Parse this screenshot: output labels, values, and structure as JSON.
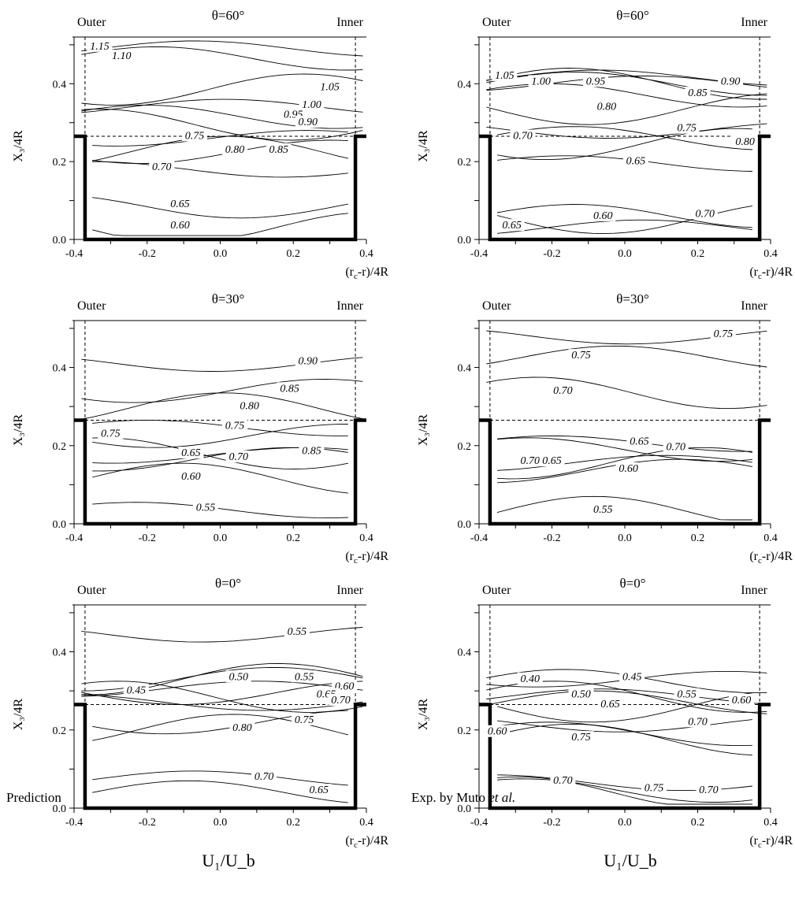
{
  "captions": {
    "left": "Prediction",
    "right_prefix": "Exp. by  Muto ",
    "right_italic": "et al.",
    "left_quantity": "U₁/U_b",
    "right_quantity": "U₁/U_b"
  },
  "chart_data": [
    {
      "type": "contour",
      "title": "θ=60°",
      "side_left": "Outer",
      "side_right": "Inner",
      "xlabel": "(r_c-r)/4R",
      "ylabel": "X₃/4R",
      "xlim": [
        -0.4,
        0.4
      ],
      "ylim": [
        0,
        0.52
      ],
      "xticks": [
        "-0.4",
        "-0.2",
        "0.0",
        "0.2",
        "0.4"
      ],
      "yticks": [
        "0.0",
        "0.2",
        "0.4"
      ],
      "channel": {
        "x": [
          -0.37,
          0.37
        ],
        "top": 0.265
      },
      "contour_labels": [
        {
          "text": "1.15",
          "x": -0.33,
          "y": 0.49
        },
        {
          "text": "1.10",
          "x": -0.27,
          "y": 0.465
        },
        {
          "text": "1.05",
          "x": 0.3,
          "y": 0.385
        },
        {
          "text": "1.00",
          "x": 0.25,
          "y": 0.34
        },
        {
          "text": "0.95",
          "x": 0.2,
          "y": 0.315
        },
        {
          "text": "0.90",
          "x": 0.24,
          "y": 0.295
        },
        {
          "text": "0.85",
          "x": 0.16,
          "y": 0.225
        },
        {
          "text": "0.80",
          "x": 0.04,
          "y": 0.225
        },
        {
          "text": "0.75",
          "x": -0.07,
          "y": 0.26
        },
        {
          "text": "0.70",
          "x": -0.16,
          "y": 0.18
        },
        {
          "text": "0.65",
          "x": -0.11,
          "y": 0.085
        },
        {
          "text": "0.60",
          "x": -0.11,
          "y": 0.03
        }
      ]
    },
    {
      "type": "contour",
      "title": "θ=60°",
      "side_left": "Outer",
      "side_right": "Inner",
      "xlabel": "(r_c-r)/4R",
      "ylabel": "X₃/4R",
      "xlim": [
        -0.4,
        0.4
      ],
      "ylim": [
        0,
        0.52
      ],
      "xticks": [
        "-0.4",
        "-0.2",
        "0.0",
        "0.2",
        "0.4"
      ],
      "yticks": [
        "0.0",
        "0.2",
        "0.4"
      ],
      "channel": {
        "x": [
          -0.37,
          0.37
        ],
        "top": 0.265
      },
      "contour_labels": [
        {
          "text": "1.05",
          "x": -0.33,
          "y": 0.415
        },
        {
          "text": "1.00",
          "x": -0.23,
          "y": 0.4
        },
        {
          "text": "0.95",
          "x": -0.08,
          "y": 0.4
        },
        {
          "text": "0.90",
          "x": 0.29,
          "y": 0.4
        },
        {
          "text": "0.85",
          "x": 0.2,
          "y": 0.37
        },
        {
          "text": "0.80",
          "x": -0.05,
          "y": 0.335
        },
        {
          "text": "0.75",
          "x": 0.17,
          "y": 0.28
        },
        {
          "text": "0.80",
          "x": 0.33,
          "y": 0.245
        },
        {
          "text": "0.70",
          "x": -0.28,
          "y": 0.26
        },
        {
          "text": "0.65",
          "x": 0.03,
          "y": 0.195
        },
        {
          "text": "0.60",
          "x": -0.06,
          "y": 0.055
        },
        {
          "text": "0.65",
          "x": -0.31,
          "y": 0.03
        },
        {
          "text": "0.70",
          "x": 0.22,
          "y": 0.06
        }
      ]
    },
    {
      "type": "contour",
      "title": "θ=30°",
      "side_left": "Outer",
      "side_right": "Inner",
      "xlabel": "(r_c-r)/4R",
      "ylabel": "X₃/4R",
      "xlim": [
        -0.4,
        0.4
      ],
      "ylim": [
        0,
        0.52
      ],
      "xticks": [
        "-0.4",
        "-0.2",
        "0.0",
        "0.2",
        "0.4"
      ],
      "yticks": [
        "0.0",
        "0.2",
        "0.4"
      ],
      "channel": {
        "x": [
          -0.37,
          0.37
        ],
        "top": 0.265
      },
      "contour_labels": [
        {
          "text": "0.90",
          "x": 0.24,
          "y": 0.41
        },
        {
          "text": "0.85",
          "x": 0.19,
          "y": 0.34
        },
        {
          "text": "0.80",
          "x": 0.08,
          "y": 0.295
        },
        {
          "text": "0.75",
          "x": 0.04,
          "y": 0.245
        },
        {
          "text": "0.75",
          "x": -0.3,
          "y": 0.225
        },
        {
          "text": "0.85",
          "x": 0.25,
          "y": 0.18
        },
        {
          "text": "0.70",
          "x": 0.05,
          "y": 0.165
        },
        {
          "text": "0.65",
          "x": -0.08,
          "y": 0.175
        },
        {
          "text": "0.60",
          "x": -0.08,
          "y": 0.115
        },
        {
          "text": "0.55",
          "x": -0.04,
          "y": 0.035
        }
      ]
    },
    {
      "type": "contour",
      "title": "θ=30°",
      "side_left": "Outer",
      "side_right": "Inner",
      "xlabel": "(r_c-r)/4R",
      "ylabel": "X₃/4R",
      "xlim": [
        -0.4,
        0.4
      ],
      "ylim": [
        0,
        0.52
      ],
      "xticks": [
        "-0.4",
        "-0.2",
        "0.0",
        "0.2",
        "0.4"
      ],
      "yticks": [
        "0.0",
        "0.2",
        "0.4"
      ],
      "channel": {
        "x": [
          -0.37,
          0.37
        ],
        "top": 0.265
      },
      "contour_labels": [
        {
          "text": "0.75",
          "x": 0.27,
          "y": 0.48
        },
        {
          "text": "0.75",
          "x": -0.12,
          "y": 0.425
        },
        {
          "text": "0.70",
          "x": -0.17,
          "y": 0.335
        },
        {
          "text": "0.65",
          "x": 0.04,
          "y": 0.205
        },
        {
          "text": "0.70",
          "x": 0.14,
          "y": 0.19
        },
        {
          "text": "0.70",
          "x": -0.26,
          "y": 0.155
        },
        {
          "text": "0.65",
          "x": -0.2,
          "y": 0.155
        },
        {
          "text": "0.60",
          "x": 0.01,
          "y": 0.135
        },
        {
          "text": "0.55",
          "x": -0.06,
          "y": 0.03
        }
      ]
    },
    {
      "type": "contour",
      "title": "θ=0°",
      "side_left": "Outer",
      "side_right": "Inner",
      "xlabel": "(r_c-r)/4R",
      "ylabel": "X₃/4R",
      "xlim": [
        -0.4,
        0.4
      ],
      "ylim": [
        0,
        0.52
      ],
      "xticks": [
        "-0.4",
        "-0.2",
        "0.0",
        "0.2",
        "0.4"
      ],
      "yticks": [
        "0.0",
        "0.2",
        "0.4"
      ],
      "channel": {
        "x": [
          -0.37,
          0.37
        ],
        "top": 0.265
      },
      "contour_labels": [
        {
          "text": "0.55",
          "x": 0.21,
          "y": 0.445
        },
        {
          "text": "0.50",
          "x": 0.05,
          "y": 0.33
        },
        {
          "text": "0.55",
          "x": 0.23,
          "y": 0.33
        },
        {
          "text": "0.45",
          "x": -0.23,
          "y": 0.295
        },
        {
          "text": "0.60",
          "x": 0.34,
          "y": 0.305
        },
        {
          "text": "0.65",
          "x": 0.29,
          "y": 0.285
        },
        {
          "text": "0.70",
          "x": 0.33,
          "y": 0.27
        },
        {
          "text": "0.80",
          "x": 0.06,
          "y": 0.2
        },
        {
          "text": "0.75",
          "x": 0.23,
          "y": 0.22
        },
        {
          "text": "0.70",
          "x": 0.12,
          "y": 0.075
        },
        {
          "text": "0.65",
          "x": 0.27,
          "y": 0.04
        }
      ]
    },
    {
      "type": "contour",
      "title": "θ=0°",
      "side_left": "Outer",
      "side_right": "Inner",
      "xlabel": "(r_c-r)/4R",
      "ylabel": "X₃/4R",
      "xlim": [
        -0.4,
        0.4
      ],
      "ylim": [
        0,
        0.52
      ],
      "xticks": [
        "-0.4",
        "-0.2",
        "0.0",
        "0.2",
        "0.4"
      ],
      "yticks": [
        "0.0",
        "0.2",
        "0.4"
      ],
      "channel": {
        "x": [
          -0.37,
          0.37
        ],
        "top": 0.265
      },
      "contour_labels": [
        {
          "text": "0.40",
          "x": -0.26,
          "y": 0.325
        },
        {
          "text": "0.45",
          "x": 0.02,
          "y": 0.33
        },
        {
          "text": "0.50",
          "x": -0.12,
          "y": 0.285
        },
        {
          "text": "0.55",
          "x": 0.17,
          "y": 0.285
        },
        {
          "text": "0.60",
          "x": 0.32,
          "y": 0.27
        },
        {
          "text": "0.65",
          "x": -0.04,
          "y": 0.26
        },
        {
          "text": "0.60",
          "x": -0.35,
          "y": 0.19
        },
        {
          "text": "0.70",
          "x": 0.2,
          "y": 0.215
        },
        {
          "text": "0.75",
          "x": -0.12,
          "y": 0.175
        },
        {
          "text": "0.70",
          "x": -0.17,
          "y": 0.065
        },
        {
          "text": "0.75",
          "x": 0.08,
          "y": 0.045
        },
        {
          "text": "0.70",
          "x": 0.23,
          "y": 0.04
        }
      ]
    }
  ]
}
